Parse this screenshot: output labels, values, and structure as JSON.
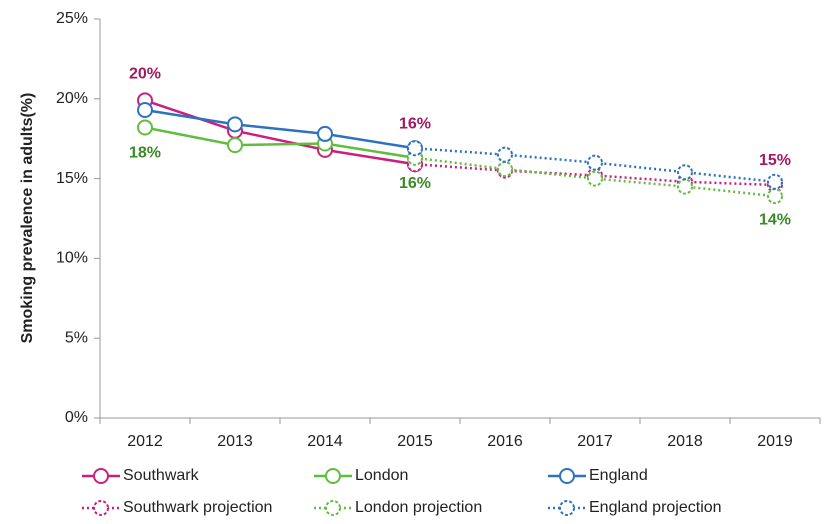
{
  "chart_data": {
    "type": "line",
    "ylabel": "Smoking prevalence in adults(%)",
    "categories": [
      "2012",
      "2013",
      "2014",
      "2015",
      "2016",
      "2017",
      "2018",
      "2019"
    ],
    "ylim": [
      0,
      25
    ],
    "yticks": [
      {
        "value": 0,
        "label": "0%"
      },
      {
        "value": 5,
        "label": "5%"
      },
      {
        "value": 10,
        "label": "10%"
      },
      {
        "value": 15,
        "label": "15%"
      },
      {
        "value": 20,
        "label": "20%"
      },
      {
        "value": 25,
        "label": "25%"
      }
    ],
    "grid": false,
    "series": [
      {
        "name": "Southwark",
        "color": "#cc1f7d",
        "label_color": "#a3195f",
        "line_style": "solid",
        "values": [
          19.9,
          18.0,
          16.8,
          15.9,
          null,
          null,
          null,
          null
        ],
        "value_labels": [
          "20%",
          null,
          null,
          "16%",
          null,
          null,
          null,
          null
        ]
      },
      {
        "name": "London",
        "color": "#5fbe3f",
        "label_color": "#3a8a26",
        "line_style": "solid",
        "values": [
          18.2,
          17.1,
          17.2,
          16.3,
          null,
          null,
          null,
          null
        ],
        "value_labels": [
          "18%",
          null,
          null,
          "16%",
          null,
          null,
          null,
          null
        ]
      },
      {
        "name": "England",
        "color": "#2d72bf",
        "label_color": "#2d72bf",
        "line_style": "solid",
        "values": [
          19.3,
          18.4,
          17.8,
          16.9,
          null,
          null,
          null,
          null
        ]
      },
      {
        "name": "Southwark projection",
        "color": "#cc1f7d",
        "label_color": "#a3195f",
        "line_style": "dotted",
        "values": [
          null,
          null,
          null,
          15.9,
          15.5,
          15.2,
          14.8,
          14.6
        ],
        "value_labels": [
          null,
          null,
          null,
          null,
          null,
          null,
          null,
          "15%"
        ]
      },
      {
        "name": "London projection",
        "color": "#5fbe3f",
        "label_color": "#3a8a26",
        "line_style": "dotted",
        "values": [
          null,
          null,
          null,
          16.3,
          15.6,
          15.0,
          14.5,
          13.9
        ],
        "value_labels": [
          null,
          null,
          null,
          null,
          null,
          null,
          null,
          "14%"
        ]
      },
      {
        "name": "England projection",
        "color": "#2d72bf",
        "label_color": "#2d72bf",
        "line_style": "dotted",
        "values": [
          null,
          null,
          null,
          16.9,
          16.5,
          16.0,
          15.4,
          14.8
        ]
      }
    ]
  }
}
